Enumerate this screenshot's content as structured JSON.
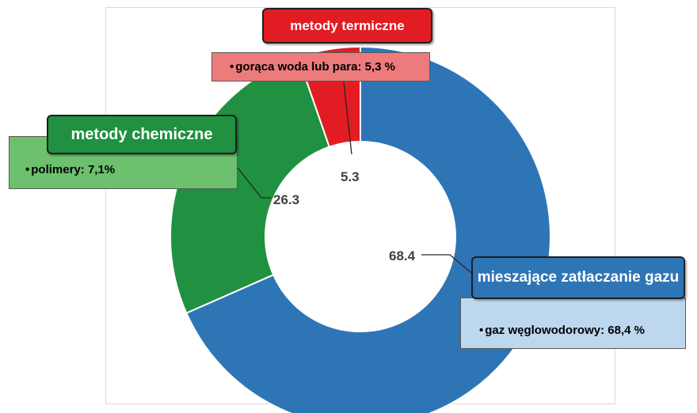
{
  "chart_data": {
    "type": "pie",
    "donut": true,
    "values": [
      68.4,
      26.3,
      5.3
    ],
    "value_labels": [
      "68.4",
      "26.3",
      "5.3"
    ],
    "colors": [
      "#2e75b6",
      "#1f9140",
      "#e11d23"
    ],
    "start": "top, clockwise"
  },
  "callouts": {
    "thermal": {
      "title": "metody termiczne",
      "item": "gorąca woda lub para: 5,3 %",
      "title_color": "#e11d23",
      "item_bg": "#ee7b7c"
    },
    "chemical": {
      "title": "metody chemiczne",
      "item": "polimery: 7,1%",
      "title_color": "#1f9140",
      "item_bg": "#6cc06e"
    },
    "gas": {
      "title": "mieszające zatłaczanie gazu",
      "item": "gaz węglowodorowy: 68,4 %",
      "title_color": "#2e75b6",
      "item_bg": "#bdd7ee"
    },
    "bullet": "•"
  }
}
